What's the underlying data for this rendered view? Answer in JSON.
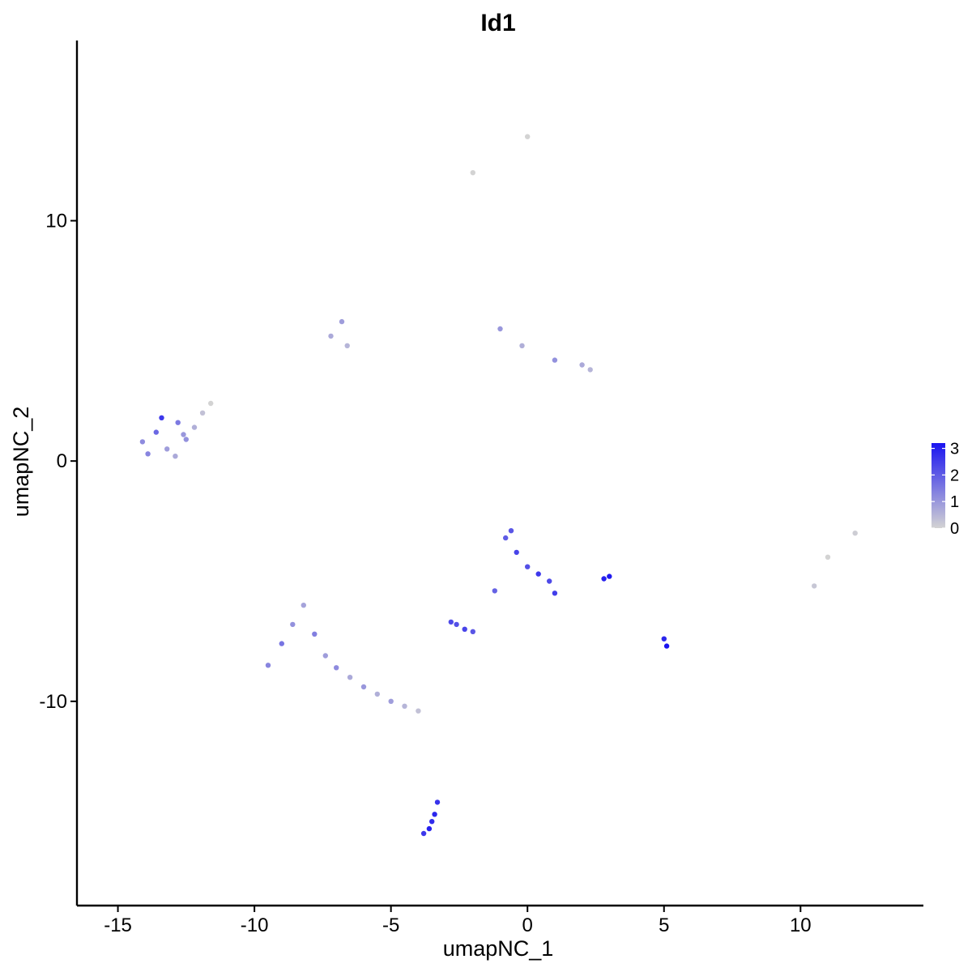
{
  "chart_data": {
    "type": "scatter",
    "title": "Id1",
    "xlabel": "umapNC_1",
    "ylabel": "umapNC_2",
    "xlim": [
      -16.5,
      14.5
    ],
    "ylim": [
      -18.5,
      17.5
    ],
    "xticks": [
      -15,
      -10,
      -5,
      0,
      5,
      10
    ],
    "xtick_labels": [
      "-15",
      "-10",
      "-5",
      "0",
      "5",
      "10"
    ],
    "yticks": [
      -10,
      0,
      10
    ],
    "ytick_labels": [
      "-10",
      "0",
      "10"
    ],
    "color_scale": {
      "low_color": "#d3d3d3",
      "high_color": "#1a14f0",
      "min": 0,
      "max": 3.2,
      "legend_ticks": [
        0,
        1,
        2,
        3
      ],
      "legend_labels": [
        "0",
        "1",
        "2",
        "3"
      ],
      "legend_position": "right"
    },
    "grid": false,
    "point_groups": [
      {
        "x": [
          -14.1,
          -13.6,
          -13.2,
          -12.8,
          -12.5,
          -12.2,
          -11.9,
          -11.6,
          -13.9,
          -13.4,
          -12.9,
          -12.6
        ],
        "y": [
          0.8,
          1.2,
          0.5,
          1.6,
          0.9,
          1.4,
          2.0,
          2.4,
          0.3,
          1.8,
          0.2,
          1.1
        ],
        "expr": [
          1.2,
          1.8,
          0.9,
          1.5,
          1.1,
          0.6,
          0.3,
          0.0,
          1.3,
          2.6,
          0.7,
          1.0
        ]
      },
      {
        "x": [
          -9.5,
          -9.0,
          -8.6,
          -8.2,
          -7.8,
          -7.4,
          -7.0,
          -6.5,
          -6.0,
          -5.5,
          -5.0,
          -4.5,
          -4.0
        ],
        "y": [
          -8.5,
          -7.6,
          -6.8,
          -6.0,
          -7.2,
          -8.1,
          -8.6,
          -9.0,
          -9.4,
          -9.7,
          -10.0,
          -10.2,
          -10.4
        ],
        "expr": [
          1.3,
          1.6,
          1.1,
          0.8,
          1.4,
          0.9,
          1.2,
          0.7,
          1.0,
          0.6,
          0.9,
          0.5,
          0.3
        ]
      },
      {
        "x": [
          -0.8,
          -0.4,
          0.0,
          0.4,
          0.8,
          1.0,
          -1.2,
          -0.6
        ],
        "y": [
          -3.2,
          -3.8,
          -4.4,
          -4.7,
          -5.0,
          -5.5,
          -5.4,
          -2.9
        ],
        "expr": [
          2.0,
          2.4,
          2.2,
          2.6,
          2.3,
          2.5,
          1.9,
          2.1
        ]
      },
      {
        "x": [
          -3.3,
          -3.4,
          -3.5,
          -3.6,
          -3.8
        ],
        "y": [
          -14.2,
          -14.7,
          -15.0,
          -15.3,
          -15.5
        ],
        "expr": [
          2.7,
          2.9,
          2.8,
          3.0,
          2.6
        ]
      },
      {
        "x": [
          -2.6,
          -2.3,
          -2.0,
          -2.8
        ],
        "y": [
          -6.8,
          -7.0,
          -7.1,
          -6.7
        ],
        "expr": [
          2.2,
          2.4,
          2.1,
          2.3
        ]
      },
      {
        "x": [
          2.8,
          3.0,
          5.0,
          5.1
        ],
        "y": [
          -4.9,
          -4.8,
          -7.4,
          -7.7
        ],
        "expr": [
          3.0,
          3.1,
          2.9,
          3.2
        ]
      },
      {
        "x": [
          -1.0,
          -0.2,
          1.0,
          2.0,
          2.3
        ],
        "y": [
          5.5,
          4.8,
          4.2,
          4.0,
          3.8
        ],
        "expr": [
          1.0,
          0.6,
          1.1,
          0.7,
          0.5
        ]
      },
      {
        "x": [
          -7.2,
          -6.8,
          -6.6
        ],
        "y": [
          5.2,
          5.8,
          4.8
        ],
        "expr": [
          0.7,
          0.9,
          0.5
        ]
      },
      {
        "x": [
          0.0,
          -2.0,
          11.0,
          12.0,
          10.5
        ],
        "y": [
          13.5,
          12.0,
          -4.0,
          -3.0,
          -5.2
        ],
        "expr": [
          0.0,
          0.0,
          0.0,
          0.1,
          0.2
        ]
      }
    ]
  }
}
